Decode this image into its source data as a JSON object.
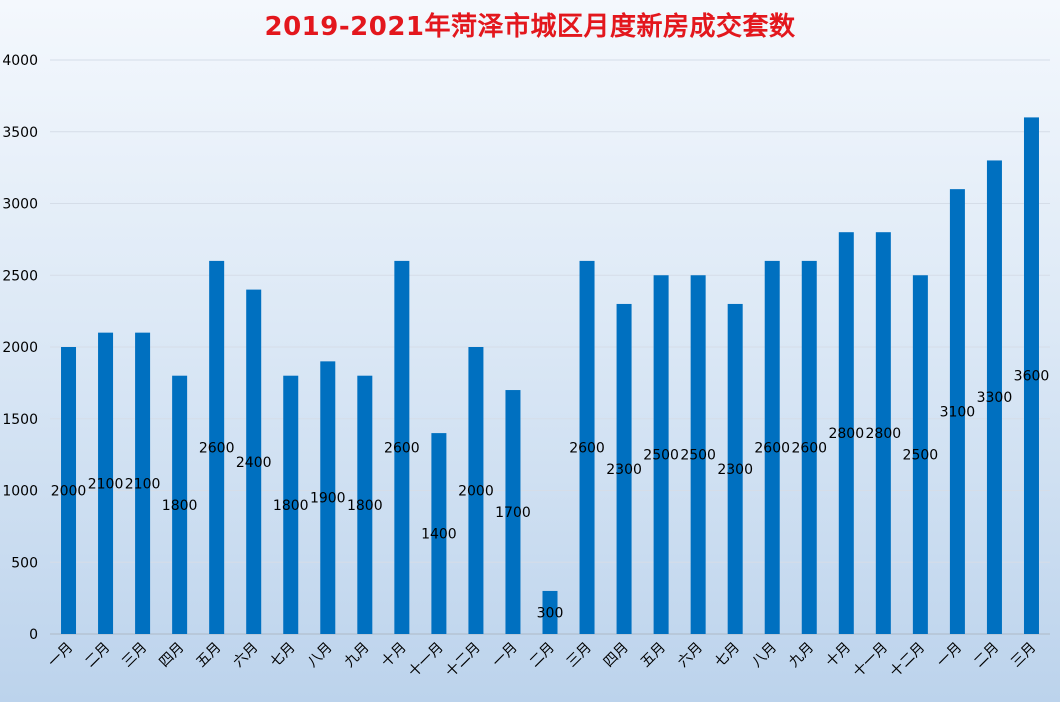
{
  "chart_data": {
    "type": "bar",
    "title": "2019-2021年菏泽市城区月度新房成交套数",
    "xlabel": "",
    "ylabel": "",
    "categories": [
      "一月",
      "二月",
      "三月",
      "四月",
      "五月",
      "六月",
      "七月",
      "八月",
      "九月",
      "十月",
      "十一月",
      "十二月",
      "一月",
      "二月",
      "三月",
      "四月",
      "五月",
      "六月",
      "七月",
      "八月",
      "九月",
      "十月",
      "十一月",
      "十二月",
      "一月",
      "二月",
      "三月"
    ],
    "values": [
      2000,
      2100,
      2100,
      1800,
      2600,
      2400,
      1800,
      1900,
      1800,
      2600,
      1400,
      2000,
      1700,
      300,
      2600,
      2300,
      2500,
      2500,
      2300,
      2600,
      2600,
      2800,
      2800,
      2500,
      3100,
      3300,
      3600
    ],
    "ylim": [
      0,
      4000
    ],
    "yticks": [
      0,
      500,
      1000,
      1500,
      2000,
      2500,
      3000,
      3500,
      4000
    ],
    "grid": true,
    "legend": "none",
    "colors": {
      "bar": "#0070c0",
      "title": "#e3171d",
      "grid": "#d5dde8",
      "text": "#000000"
    }
  }
}
